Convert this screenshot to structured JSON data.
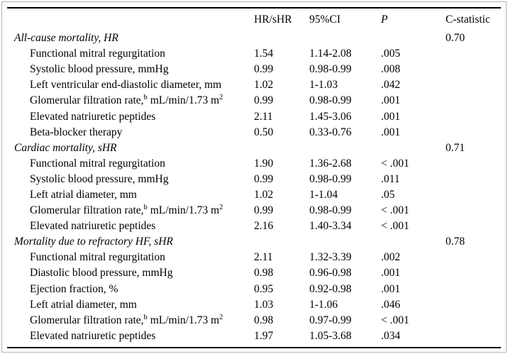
{
  "table": {
    "headers": {
      "label": "",
      "hr": "HR/sHR",
      "ci": "95%CI",
      "p": "P",
      "cstat": "C-statistic"
    },
    "rows": [
      {
        "type": "section",
        "label": "All-cause mortality, HR",
        "cstat": "0.70"
      },
      {
        "type": "item",
        "label": "Functional mitral regurgitation",
        "hr": "1.54",
        "ci": "1.14-2.08",
        "p": ".005"
      },
      {
        "type": "item",
        "label": "Systolic blood pressure, mmHg",
        "hr": "0.99",
        "ci": "0.98-0.99",
        "p": ".008"
      },
      {
        "type": "item",
        "label": "Left ventricular end-diastolic diameter, mm",
        "hr": "1.02",
        "ci": "1-1.03",
        "p": ".042"
      },
      {
        "type": "item",
        "label": "Glomerular filtration rate,",
        "sup_b": "b",
        "label2": " mL/min/1.73 m",
        "sup_2": "2",
        "hr": "0.99",
        "ci": "0.98-0.99",
        "p": ".001"
      },
      {
        "type": "item",
        "label": "Elevated natriuretic peptides",
        "hr": "2.11",
        "ci": "1.45-3.06",
        "p": ".001"
      },
      {
        "type": "item",
        "label": "Beta-blocker therapy",
        "hr": "0.50",
        "ci": "0.33-0.76",
        "p": ".001"
      },
      {
        "type": "section",
        "label": "Cardiac mortality, sHR",
        "cstat": "0.71"
      },
      {
        "type": "item",
        "label": "Functional mitral regurgitation",
        "hr": "1.90",
        "ci": "1.36-2.68",
        "p": "< .001"
      },
      {
        "type": "item",
        "label": "Systolic blood pressure, mmHg",
        "hr": "0.99",
        "ci": "0.98-0.99",
        "p": ".011"
      },
      {
        "type": "item",
        "label": "Left atrial diameter, mm",
        "hr": "1.02",
        "ci": "1-1.04",
        "p": ".05"
      },
      {
        "type": "item",
        "label": "Glomerular filtration rate,",
        "sup_b": "b",
        "label2": " mL/min/1.73 m",
        "sup_2": "2",
        "hr": "0.99",
        "ci": "0.98-0.99",
        "p": "< .001"
      },
      {
        "type": "item",
        "label": "Elevated natriuretic peptides",
        "hr": "2.16",
        "ci": "1.40-3.34",
        "p": "< .001"
      },
      {
        "type": "section",
        "label": "Mortality due to refractory HF, sHR",
        "cstat": "0.78"
      },
      {
        "type": "item",
        "label": "Functional mitral regurgitation",
        "hr": "2.11",
        "ci": "1.32-3.39",
        "p": ".002"
      },
      {
        "type": "item",
        "label": "Diastolic blood pressure, mmHg",
        "hr": "0.98",
        "ci": "0.96-0.98",
        "p": ".001"
      },
      {
        "type": "item",
        "label": "Ejection fraction, %",
        "hr": "0.95",
        "ci": "0.92-0.98",
        "p": ".001"
      },
      {
        "type": "item",
        "label": "Left atrial diameter, mm",
        "hr": "1.03",
        "ci": "1-1.06",
        "p": ".046"
      },
      {
        "type": "item",
        "label": "Glomerular filtration rate,",
        "sup_b": "b",
        "label2": " mL/min/1.73 m",
        "sup_2": "2",
        "hr": "0.98",
        "ci": "0.97-0.99",
        "p": "< .001"
      },
      {
        "type": "item",
        "label": "Elevated natriuretic peptides",
        "hr": "1.97",
        "ci": "1.05-3.68",
        "p": ".034"
      }
    ]
  },
  "colors": {
    "rule": "#000000",
    "frame": "#b3b3b3",
    "background": "#ffffff",
    "text": "#000000"
  }
}
